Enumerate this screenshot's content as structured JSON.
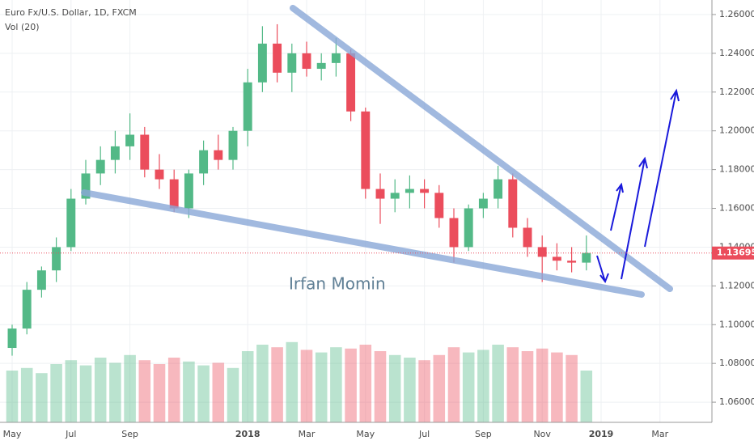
{
  "chart_data": {
    "type": "candlestick",
    "title": "Euro Fx/U.S. Dollar, 1D, FXCM",
    "subtitle": "Vol (20)",
    "watermark": "Irfan Momin",
    "categories": [
      "May",
      null,
      null,
      null,
      "Jul",
      null,
      null,
      null,
      "Sep",
      null,
      null,
      null,
      null,
      null,
      null,
      null,
      "2018",
      null,
      null,
      null,
      "Mar",
      null,
      null,
      null,
      "May",
      null,
      null,
      null,
      "Jul",
      null,
      null,
      null,
      "Sep",
      null,
      null,
      null,
      "Nov",
      null,
      null,
      null,
      "2019",
      null,
      null,
      null,
      "Mar"
    ],
    "open": [
      1.088,
      1.098,
      1.118,
      1.128,
      1.14,
      1.165,
      1.178,
      1.185,
      1.192,
      1.198,
      1.18,
      1.175,
      1.16,
      1.178,
      1.19,
      1.185,
      1.2,
      1.225,
      1.245,
      1.23,
      1.24,
      1.232,
      1.235,
      1.24,
      1.21,
      1.17,
      1.165,
      1.168,
      1.17,
      1.168,
      1.155,
      1.14,
      1.16,
      1.165,
      1.175,
      1.15,
      1.14,
      1.135,
      1.133,
      1.132,
      null,
      null,
      null,
      null,
      null
    ],
    "high": [
      1.1,
      1.122,
      1.13,
      1.145,
      1.17,
      1.185,
      1.192,
      1.2,
      1.209,
      1.202,
      1.188,
      1.18,
      1.18,
      1.195,
      1.198,
      1.202,
      1.232,
      1.254,
      1.255,
      1.245,
      1.246,
      1.24,
      1.248,
      1.242,
      1.212,
      1.178,
      1.175,
      1.177,
      1.175,
      1.172,
      1.16,
      1.162,
      1.168,
      1.182,
      1.178,
      1.155,
      1.146,
      1.142,
      1.14,
      1.146,
      null,
      null,
      null,
      null,
      null
    ],
    "low": [
      1.084,
      1.095,
      1.114,
      1.122,
      1.138,
      1.162,
      1.172,
      1.178,
      1.185,
      1.176,
      1.17,
      1.158,
      1.155,
      1.172,
      1.18,
      1.18,
      1.192,
      1.22,
      1.225,
      1.22,
      1.228,
      1.226,
      1.228,
      1.205,
      1.165,
      1.152,
      1.158,
      1.16,
      1.16,
      1.15,
      1.132,
      1.138,
      1.155,
      1.16,
      1.145,
      1.135,
      1.122,
      1.128,
      1.127,
      1.128,
      null,
      null,
      null,
      null,
      null
    ],
    "close": [
      1.098,
      1.118,
      1.128,
      1.14,
      1.165,
      1.178,
      1.185,
      1.192,
      1.198,
      1.18,
      1.175,
      1.16,
      1.178,
      1.19,
      1.185,
      1.2,
      1.225,
      1.245,
      1.23,
      1.24,
      1.232,
      1.235,
      1.24,
      1.21,
      1.17,
      1.165,
      1.168,
      1.17,
      1.168,
      1.155,
      1.14,
      1.16,
      1.165,
      1.175,
      1.15,
      1.14,
      1.135,
      1.133,
      1.132,
      1.137,
      null,
      null,
      null,
      null,
      null
    ],
    "volume": [
      40,
      42,
      38,
      45,
      48,
      44,
      50,
      46,
      52,
      48,
      45,
      50,
      47,
      44,
      46,
      42,
      55,
      60,
      58,
      62,
      56,
      54,
      58,
      57,
      60,
      55,
      52,
      50,
      48,
      52,
      58,
      54,
      56,
      60,
      58,
      55,
      57,
      54,
      52,
      40,
      null,
      null,
      null,
      null,
      null
    ],
    "up_color": "#53b987",
    "down_color": "#eb4d5c",
    "last_price": 1.13695,
    "ylim": [
      1.0496,
      1.2675
    ],
    "yticks": [
      {
        "value": 1.06,
        "label": "1.06000"
      },
      {
        "value": 1.08,
        "label": "1.08000"
      },
      {
        "value": 1.1,
        "label": "1.10000"
      },
      {
        "value": 1.12,
        "label": "1.12000"
      },
      {
        "value": 1.14,
        "label": "1.14000"
      },
      {
        "value": 1.16,
        "label": "1.16000"
      },
      {
        "value": 1.18,
        "label": "1.18000"
      },
      {
        "value": 1.2,
        "label": "1.20000"
      },
      {
        "value": 1.22,
        "label": "1.22000"
      },
      {
        "value": 1.24,
        "label": "1.24000"
      },
      {
        "value": 1.26,
        "label": "1.26000"
      }
    ],
    "grid": true
  }
}
